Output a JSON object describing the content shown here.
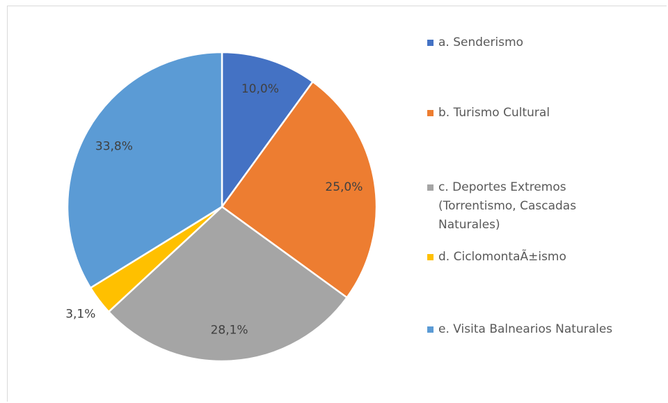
{
  "chart_data": {
    "type": "pie",
    "categories": [
      "a. Senderismo",
      "b. Turismo Cultural",
      "c. Deportes Extremos (Torrentismo, Cascadas Naturales)",
      "d. CiclomontaÃ±ismo",
      "e. Visita Balnearios Naturales"
    ],
    "values": [
      10.0,
      25.0,
      28.1,
      3.1,
      33.8
    ],
    "value_labels": [
      "10,0%",
      "25,0%",
      "28,1%",
      "3,1%",
      "33,8%"
    ],
    "colors": [
      "#4472c4",
      "#ed7d31",
      "#a5a5a5",
      "#ffc000",
      "#5b9bd5"
    ],
    "legend": "right"
  }
}
